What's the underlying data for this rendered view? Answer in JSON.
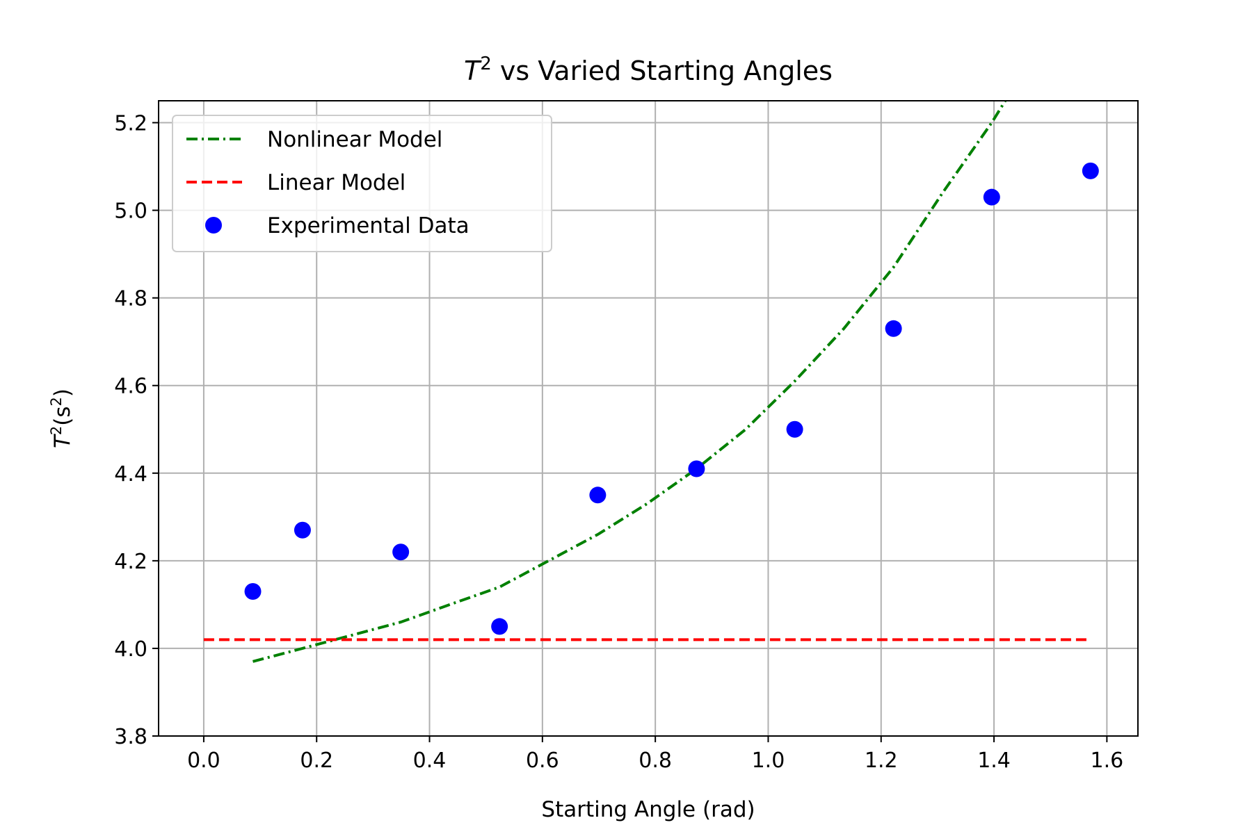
{
  "chart_data": {
    "type": "scatter",
    "title_base": "T",
    "title_sup": "2",
    "title_rest": " vs Varied Starting Angles",
    "xlabel": "Starting Angle (rad)",
    "ylabel_base": "T",
    "ylabel_sup1": "2",
    "ylabel_mid": "(s",
    "ylabel_sup2": "2",
    "ylabel_end": ")",
    "xlim": [
      -0.08,
      1.655
    ],
    "ylim": [
      3.8,
      5.25
    ],
    "xticks": [
      "0.0",
      "0.2",
      "0.4",
      "0.6",
      "0.8",
      "1.0",
      "1.2",
      "1.4",
      "1.6"
    ],
    "yticks": [
      "3.8",
      "4.0",
      "4.2",
      "4.4",
      "4.6",
      "4.8",
      "5.0",
      "5.2"
    ],
    "grid": true,
    "legend_position": "upper-left",
    "series": [
      {
        "name": "Nonlinear Model",
        "kind": "line",
        "style": "dashdot",
        "color": "#008000",
        "x": [
          0.087,
          0.175,
          0.262,
          0.349,
          0.436,
          0.524,
          0.611,
          0.698,
          0.785,
          0.873,
          0.96,
          1.047,
          1.134,
          1.222,
          1.309,
          1.396,
          1.42
        ],
        "y": [
          3.97,
          4.0,
          4.03,
          4.06,
          4.1,
          4.14,
          4.2,
          4.26,
          4.33,
          4.41,
          4.5,
          4.61,
          4.73,
          4.87,
          5.04,
          5.2,
          5.25
        ]
      },
      {
        "name": "Linear Model",
        "kind": "line",
        "style": "dashed",
        "color": "#ff0000",
        "x": [
          0.0,
          1.571
        ],
        "y": [
          4.02,
          4.02
        ]
      },
      {
        "name": "Experimental Data",
        "kind": "scatter",
        "color": "#0000ff",
        "x": [
          0.087,
          0.175,
          0.349,
          0.524,
          0.698,
          0.873,
          1.047,
          1.222,
          1.396,
          1.571
        ],
        "y": [
          4.13,
          4.27,
          4.22,
          4.05,
          4.35,
          4.41,
          4.5,
          4.73,
          5.03,
          5.09
        ]
      }
    ]
  }
}
